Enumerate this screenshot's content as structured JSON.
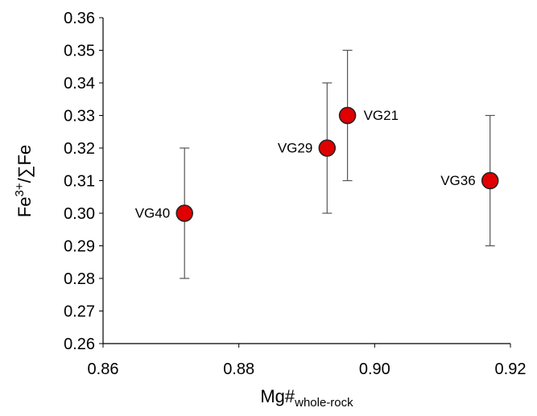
{
  "chart_data": {
    "type": "scatter",
    "labels": [
      "VG40",
      "VG29",
      "VG21",
      "VG36"
    ],
    "x": [
      0.872,
      0.893,
      0.896,
      0.917
    ],
    "values": [
      0.3,
      0.32,
      0.33,
      0.31
    ],
    "errors": [
      0.02,
      0.02,
      0.02,
      0.02
    ],
    "color": "#e00000",
    "xlim": [
      0.86,
      0.92
    ],
    "xticks": [
      0.86,
      0.88,
      {
        "value": 0.9,
        "label": "0.90"
      },
      0.92
    ],
    "ylim": [
      0.26,
      0.36
    ],
    "yticks": [
      0.26,
      0.27,
      0.28,
      0.29,
      {
        "value": 0.3,
        "label": "0.30"
      },
      0.31,
      0.32,
      0.33,
      0.34,
      0.35,
      0.36
    ],
    "xlabel": {
      "main": "Mg#",
      "sub": "whole-rock"
    },
    "ylabel": {
      "main": "Fe",
      "sup": "3+",
      "rest": "/∑Fe"
    }
  }
}
